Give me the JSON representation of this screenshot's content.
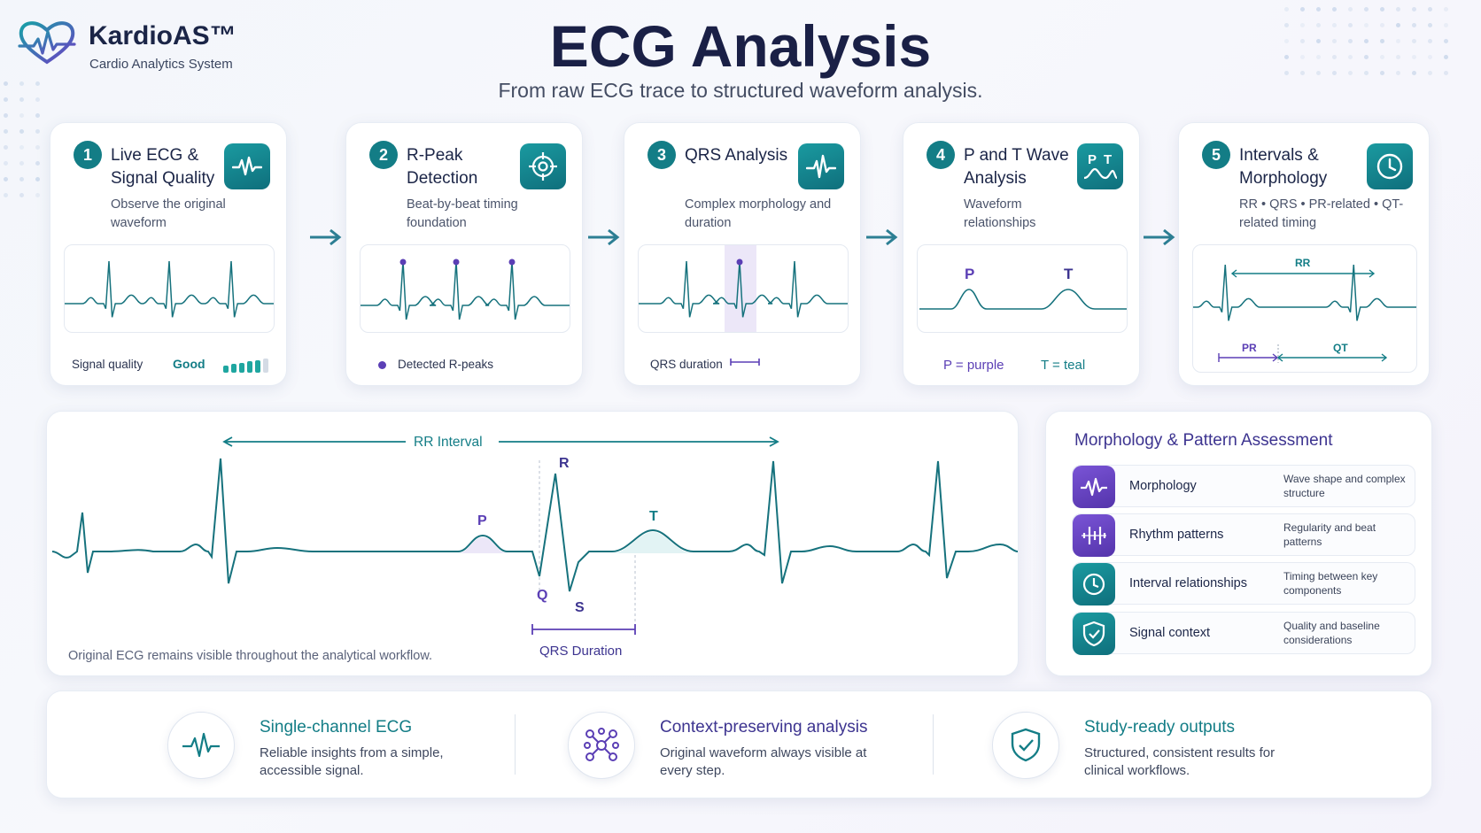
{
  "brand": {
    "name": "KardioAS™",
    "subtitle": "Cardio Analytics System"
  },
  "header": {
    "title": "ECG Analysis",
    "subtitle": "From raw ECG trace to structured waveform analysis."
  },
  "steps": [
    {
      "number": "1",
      "title": "Live ECG & Signal Quality",
      "description": "Observe the original waveform",
      "icon": "waveform-icon",
      "footer": {
        "label": "Signal quality",
        "value": "Good",
        "quality_bars_filled": 5,
        "quality_bars_total": 6
      }
    },
    {
      "number": "2",
      "title": "R-Peak Detection",
      "description": "Beat-by-beat timing foundation",
      "icon": "crosshair-icon",
      "footer": {
        "legend": "Detected R-peaks"
      }
    },
    {
      "number": "3",
      "title": "QRS Analysis",
      "description": "Complex morphology and duration",
      "icon": "waveform-icon",
      "footer": {
        "legend": "QRS duration"
      }
    },
    {
      "number": "4",
      "title": "P and T Wave Analysis",
      "description": "Waveform relationships",
      "icon": "pt-wave-icon",
      "icon_text": {
        "p": "P",
        "t": "T"
      },
      "chart_labels": {
        "p": "P",
        "t": "T"
      },
      "footer": {
        "p_legend": "P = purple",
        "t_legend": "T = teal"
      }
    },
    {
      "number": "5",
      "title": "Intervals & Morphology",
      "description": "RR • QRS • PR-related • QT-related timing",
      "icon": "clock-icon",
      "chart_labels": {
        "rr": "RR",
        "pr": "PR",
        "qt": "QT"
      }
    }
  ],
  "ecg_panel": {
    "rr_label": "RR Interval",
    "labels": {
      "p": "P",
      "q": "Q",
      "r": "R",
      "s": "S",
      "t": "T"
    },
    "qrs_label": "QRS Duration",
    "note": "Original ECG remains visible throughout the analytical workflow."
  },
  "morphology": {
    "title": "Morphology & Pattern Assessment",
    "items": [
      {
        "label": "Morphology",
        "description": "Wave shape and complex structure",
        "icon": "waveform-icon"
      },
      {
        "label": "Rhythm patterns",
        "description": "Regularity and beat patterns",
        "icon": "rhythm-bars-icon"
      },
      {
        "label": "Interval relationships",
        "description": "Timing between key components",
        "icon": "clock-icon"
      },
      {
        "label": "Signal context",
        "description": "Quality and baseline considerations",
        "icon": "shield-check-icon"
      }
    ]
  },
  "features": [
    {
      "title": "Single-channel ECG",
      "description": "Reliable insights from a simple, accessible signal.",
      "icon": "waveform-icon"
    },
    {
      "title": "Context-preserving analysis",
      "description": "Original waveform always visible at every step.",
      "icon": "network-nodes-icon"
    },
    {
      "title": "Study-ready outputs",
      "description": "Structured, consistent results for clinical workflows.",
      "icon": "shield-check-icon"
    }
  ],
  "colors": {
    "teal": "#137d86",
    "purple": "#5b3fb5",
    "navy": "#1a2046",
    "ecg_line": "#16727d"
  }
}
